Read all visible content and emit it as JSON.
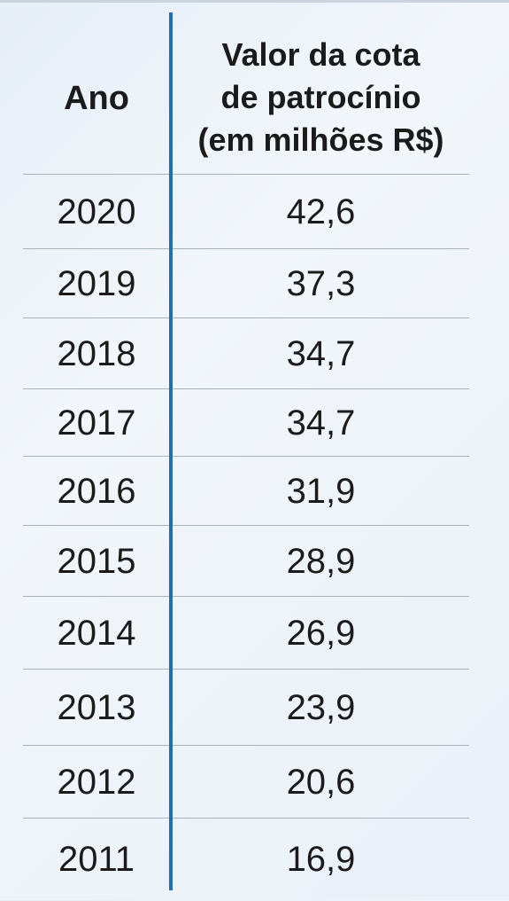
{
  "header": {
    "col_year": "Ano",
    "col_value_lines": [
      "Valor da cota",
      "de patrocínio",
      "(em milhões R$)"
    ]
  },
  "rows": [
    {
      "year": "2020",
      "value": "42,6"
    },
    {
      "year": "2019",
      "value": "37,3"
    },
    {
      "year": "2018",
      "value": "34,7"
    },
    {
      "year": "2017",
      "value": "34,7"
    },
    {
      "year": "2016",
      "value": "31,9"
    },
    {
      "year": "2015",
      "value": "28,9"
    },
    {
      "year": "2014",
      "value": "26,9"
    },
    {
      "year": "2013",
      "value": "23,9"
    },
    {
      "year": "2012",
      "value": "20,6"
    },
    {
      "year": "2011",
      "value": "16,9"
    }
  ],
  "colors": {
    "divider": "#1f6fb2",
    "row_rule": "#a8b2bb",
    "text": "#1b1b1b"
  },
  "chart_data": {
    "type": "table",
    "columns": [
      "Ano",
      "Valor da cota de patrocínio (em milhões R$)"
    ],
    "x": [
      2020,
      2019,
      2018,
      2017,
      2016,
      2015,
      2014,
      2013,
      2012,
      2011
    ],
    "values": [
      42.6,
      37.3,
      34.7,
      34.7,
      31.9,
      28.9,
      26.9,
      23.9,
      20.6,
      16.9
    ]
  }
}
